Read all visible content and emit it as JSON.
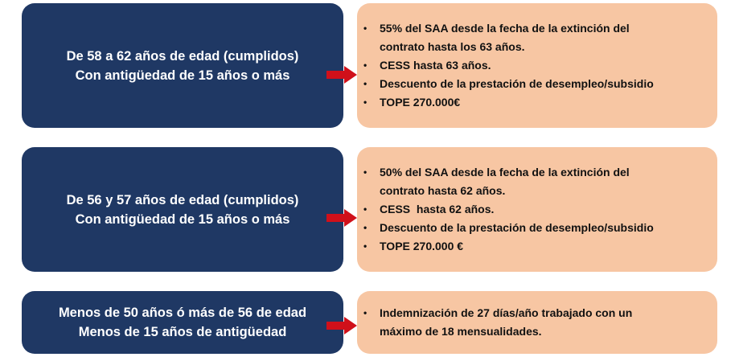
{
  "rows": [
    {
      "left": [
        "De 58 a 62 años de edad (cumplidos)",
        "Con antigüedad de 15 años o más"
      ],
      "items": [
        [
          "55% del SAA desde la fecha de la extinción del",
          "contrato hasta los 63 años."
        ],
        [
          "CESS hasta 63 años."
        ],
        [
          "Descuento de la prestación de desempleo/subsidio"
        ],
        [
          "TOPE 270.000€"
        ]
      ]
    },
    {
      "left": [
        "De 56 y 57 años de edad (cumplidos)",
        "Con antigüedad de 15 años o más"
      ],
      "items": [
        [
          "50% del SAA desde la fecha de la extinción del",
          "contrato hasta 62 años."
        ],
        [
          "CESS  hasta 62 años."
        ],
        [
          "Descuento de la prestación de desempleo/subsidio"
        ],
        [
          "TOPE 270.000 €"
        ]
      ]
    },
    {
      "left": [
        "Menos de 50 años ó más de 56 de edad",
        "Menos de 15 años de antigüedad"
      ],
      "items": [
        [
          "Indemnización de 27 días/año trabajado con un",
          "máximo de 18 mensualidades."
        ]
      ]
    }
  ],
  "colors": {
    "left_box": "#1f3864",
    "right_box": "#f7c6a3",
    "arrow": "#d0101a"
  },
  "bullet": "•"
}
